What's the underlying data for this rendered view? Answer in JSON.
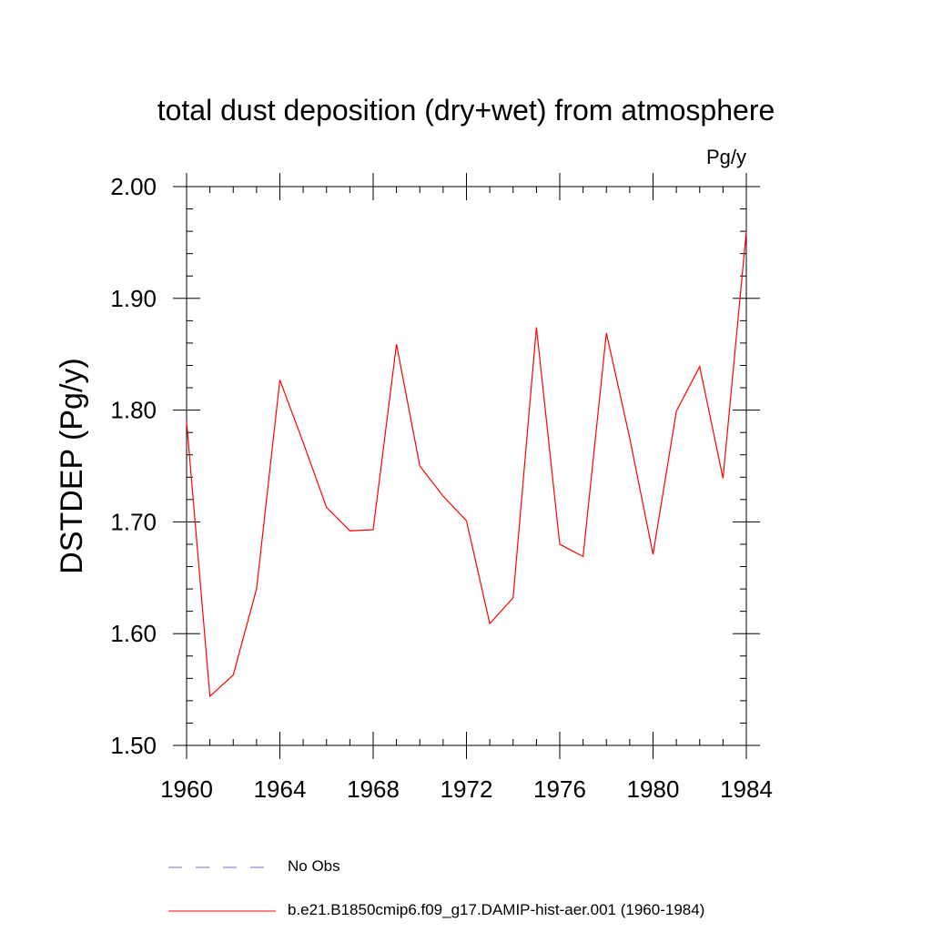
{
  "chart_data": {
    "type": "line",
    "title": "total dust deposition (dry+wet) from atmosphere",
    "units": "Pg/y",
    "ylabel": "DSTDEP  (Pg/y)",
    "xlabel": "",
    "xlim": [
      1960,
      1984
    ],
    "ylim": [
      1.5,
      2.0
    ],
    "x_ticks": [
      "1960",
      "1964",
      "1968",
      "1972",
      "1976",
      "1980",
      "1984"
    ],
    "y_ticks": [
      "1.50",
      "1.60",
      "1.70",
      "1.80",
      "1.90",
      "2.00"
    ],
    "x": [
      1960,
      1961,
      1962,
      1963,
      1964,
      1965,
      1966,
      1967,
      1968,
      1969,
      1970,
      1971,
      1972,
      1973,
      1974,
      1975,
      1976,
      1977,
      1978,
      1979,
      1980,
      1981,
      1982,
      1983,
      1984
    ],
    "series": [
      {
        "name": "b.e21.B1850cmip6.f09_g17.DAMIP-hist-aer.001 (1960-1984)",
        "color": "#ff0000",
        "values": [
          1.79,
          1.544,
          1.563,
          1.64,
          1.827,
          1.771,
          1.713,
          1.692,
          1.693,
          1.859,
          1.75,
          1.723,
          1.701,
          1.609,
          1.632,
          1.874,
          1.68,
          1.669,
          1.869,
          1.775,
          1.671,
          1.799,
          1.839,
          1.739,
          1.96
        ]
      }
    ],
    "legend": [
      {
        "label": "No Obs",
        "style": "dashed",
        "color": "#6b6bd6"
      },
      {
        "label": "b.e21.B1850cmip6.f09_g17.DAMIP-hist-aer.001 (1960-1984)",
        "style": "solid",
        "color": "#ff0000"
      }
    ],
    "legend_position": "bottom",
    "grid": false
  }
}
